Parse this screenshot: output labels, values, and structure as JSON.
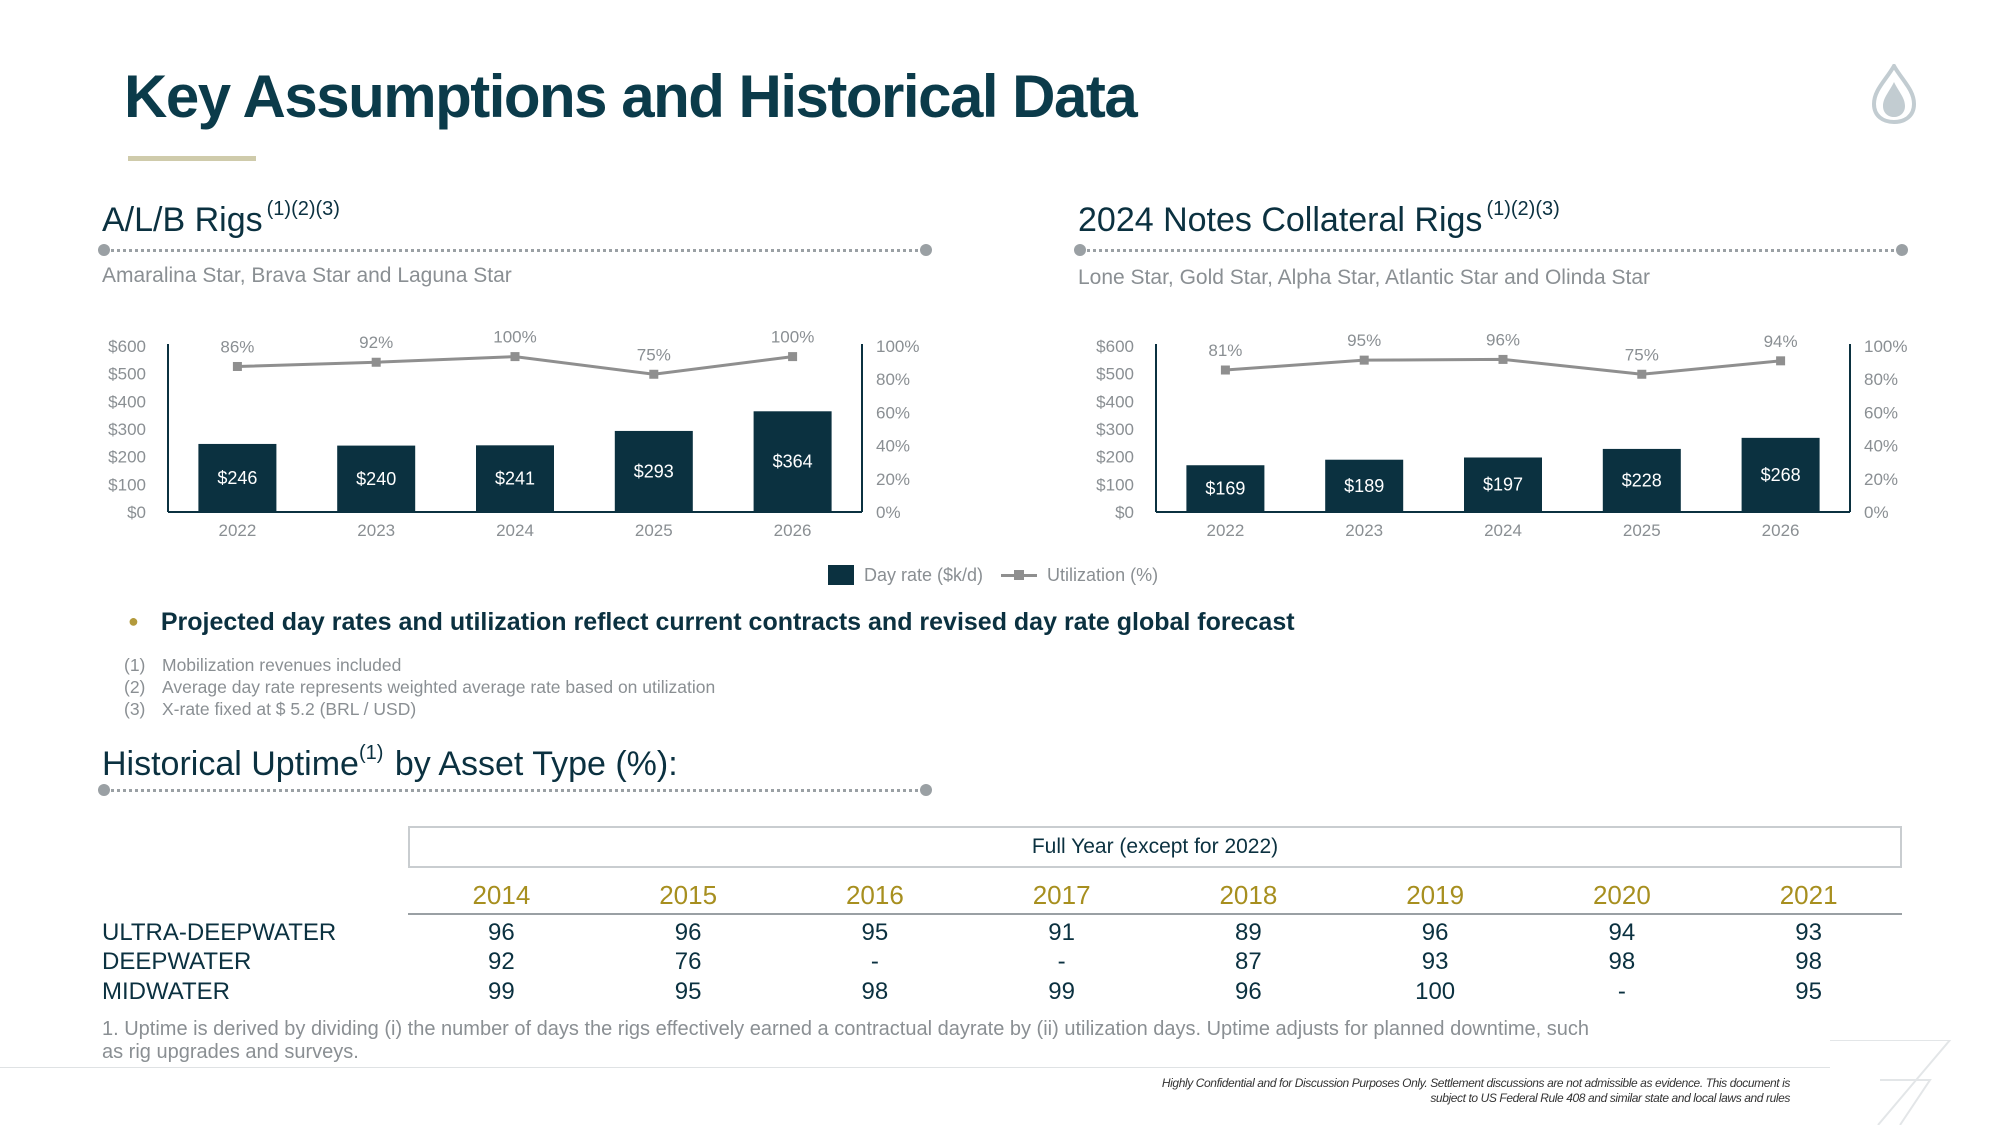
{
  "title": "Key Assumptions and Historical Data",
  "logo_icon": "flame-drop-icon",
  "left_section": {
    "title": "A/L/B Rigs",
    "superscript": "(1)(2)(3)",
    "subtitle": "Amaralina Star, Brava Star and Laguna Star"
  },
  "right_section": {
    "title": "2024 Notes Collateral Rigs",
    "superscript": "(1)(2)(3)",
    "subtitle": "Lone Star, Gold Star, Alpha Star, Atlantic Star and Olinda Star"
  },
  "chart_data": [
    {
      "type": "bar",
      "categories": [
        "2022",
        "2023",
        "2024",
        "2025",
        "2026"
      ],
      "series": [
        {
          "name": "Day rate ($k/d)",
          "type": "bar",
          "axis": "left",
          "values": [
            246,
            240,
            241,
            293,
            364
          ],
          "labels": [
            "$246",
            "$240",
            "$241",
            "$293",
            "$364"
          ]
        },
        {
          "name": "Utilization (%)",
          "type": "line",
          "axis": "right",
          "values": [
            86,
            92,
            100,
            75,
            100
          ],
          "labels": [
            "86%",
            "92%",
            "100%",
            "75%",
            "100%"
          ]
        }
      ],
      "left_axis": {
        "ticks": [
          "$0",
          "$100",
          "$200",
          "$300",
          "$400",
          "$500",
          "$600"
        ],
        "ylim": [
          0,
          600
        ]
      },
      "right_axis": {
        "ticks": [
          "0%",
          "20%",
          "40%",
          "60%",
          "80%",
          "100%"
        ],
        "ylim": [
          0,
          100
        ]
      },
      "utilization_plot_range": [
        -120,
        115
      ],
      "colors": {
        "bar": "#0b3140",
        "line": "#8f8f8f"
      }
    },
    {
      "type": "bar",
      "categories": [
        "2022",
        "2023",
        "2024",
        "2025",
        "2026"
      ],
      "series": [
        {
          "name": "Day rate ($k/d)",
          "type": "bar",
          "axis": "left",
          "values": [
            169,
            189,
            197,
            228,
            268
          ],
          "labels": [
            "$169",
            "$189",
            "$197",
            "$228",
            "$268"
          ]
        },
        {
          "name": "Utilization (%)",
          "type": "line",
          "axis": "right",
          "values": [
            81,
            95,
            96,
            75,
            94
          ],
          "labels": [
            "81%",
            "95%",
            "96%",
            "75%",
            "94%"
          ]
        }
      ],
      "left_axis": {
        "ticks": [
          "$0",
          "$100",
          "$200",
          "$300",
          "$400",
          "$500",
          "$600"
        ],
        "ylim": [
          0,
          600
        ]
      },
      "right_axis": {
        "ticks": [
          "0%",
          "20%",
          "40%",
          "60%",
          "80%",
          "100%"
        ],
        "ylim": [
          0,
          100
        ]
      },
      "utilization_plot_range": [
        -120,
        115
      ],
      "colors": {
        "bar": "#0b3140",
        "line": "#8f8f8f"
      }
    }
  ],
  "legend": {
    "bar_label": "Day rate ($k/d)",
    "line_label": "Utilization (%)"
  },
  "bullet": "Projected day rates and utilization reflect current contracts and revised day rate global forecast",
  "notes": [
    {
      "num": "(1)",
      "text": "Mobilization revenues included"
    },
    {
      "num": "(2)",
      "text": "Average day rate represents weighted average rate based on utilization"
    },
    {
      "num": "(3)",
      "text": "X-rate fixed at $ 5.2 (BRL / USD)"
    }
  ],
  "uptime_section": {
    "title": "Historical Uptime",
    "superscript": "(1)",
    "title_suffix": " by Asset Type (%):"
  },
  "uptime_table": {
    "header_box": "Full Year (except for 2022)",
    "years": [
      "2014",
      "2015",
      "2016",
      "2017",
      "2018",
      "2019",
      "2020",
      "2021"
    ],
    "rows": [
      {
        "label": "ULTRA-DEEPWATER",
        "values": [
          "96",
          "96",
          "95",
          "91",
          "89",
          "96",
          "94",
          "93"
        ]
      },
      {
        "label": "DEEPWATER",
        "values": [
          "92",
          "76",
          "-",
          "-",
          "87",
          "93",
          "98",
          "98"
        ]
      },
      {
        "label": "MIDWATER",
        "values": [
          "99",
          "95",
          "98",
          "99",
          "96",
          "100",
          "-",
          "95"
        ]
      }
    ]
  },
  "uptime_footnote": "1. Uptime is derived by dividing (i) the number of days the rigs effectively earned a contractual dayrate by (ii) utilization days. Uptime adjusts for planned downtime, such as rig upgrades and surveys.",
  "disclaimer": {
    "line1": "Highly Confidential and for Discussion Purposes Only. Settlement discussions are not admissible as evidence. This document is",
    "line2": "subject to US Federal Rule 408 and similar state and local laws and rules"
  }
}
